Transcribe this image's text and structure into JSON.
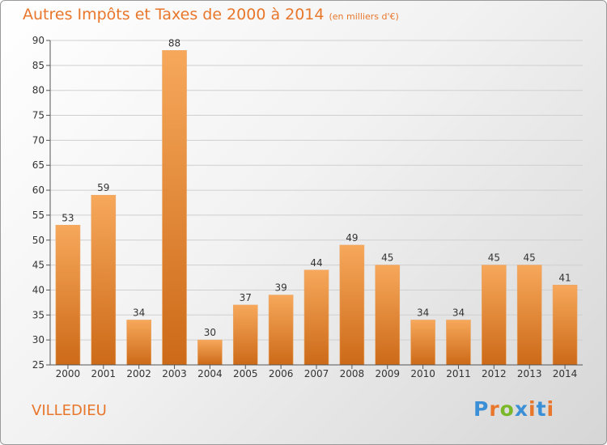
{
  "title": "Autres Impôts et Taxes de 2000 à 2014",
  "subtitle": "(en milliers d'€)",
  "commune": "VILLEDIEU",
  "logo": {
    "text": "Proxiti",
    "colors": [
      "#3a8fd6",
      "#e8762b",
      "#7ab82a",
      "#3a8fd6",
      "#e8762b",
      "#3a8fd6",
      "#e8762b"
    ]
  },
  "colors": {
    "bar_light": "#f7a85b",
    "bar_dark": "#cc6a18",
    "accent": "#e8762b",
    "grid": "#cfcfcf"
  },
  "chart_data": {
    "type": "bar",
    "categories": [
      "2000",
      "2001",
      "2002",
      "2003",
      "2004",
      "2005",
      "2006",
      "2007",
      "2008",
      "2009",
      "2010",
      "2011",
      "2012",
      "2013",
      "2014"
    ],
    "values": [
      53,
      59,
      34,
      88,
      30,
      37,
      39,
      44,
      49,
      45,
      34,
      34,
      45,
      45,
      41
    ],
    "title": "Autres Impôts et Taxes de 2000 à 2014",
    "ylim": [
      25,
      90
    ],
    "yticks": [
      25,
      30,
      35,
      40,
      45,
      50,
      55,
      60,
      65,
      70,
      75,
      80,
      85,
      90
    ],
    "grid": "horizontal"
  }
}
